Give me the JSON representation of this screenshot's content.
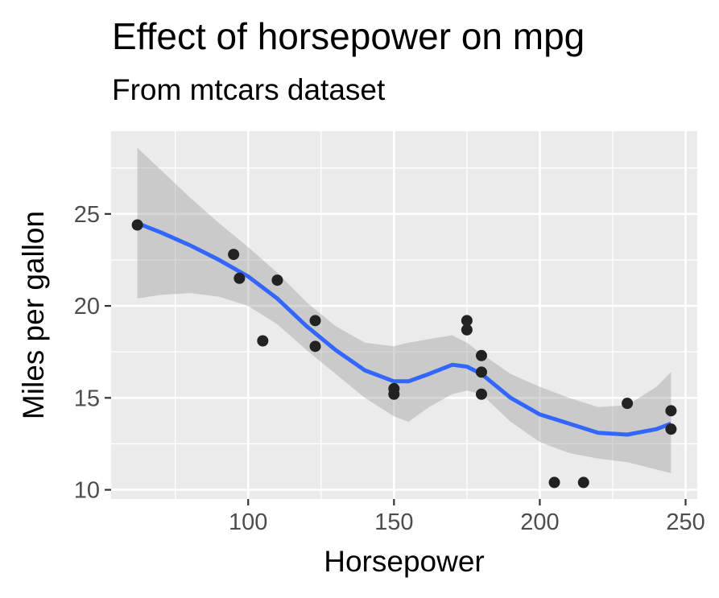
{
  "chart_data": {
    "type": "scatter",
    "title": "Effect of horsepower on mpg",
    "subtitle": "From mtcars dataset",
    "xlabel": "Horsepower",
    "ylabel": "Miles per gallon",
    "xlim": [
      53,
      254
    ],
    "ylim": [
      9.5,
      29.5
    ],
    "x_ticks": [
      100,
      150,
      200,
      250
    ],
    "y_ticks": [
      10,
      15,
      20,
      25
    ],
    "x_minor": [
      75,
      125,
      175,
      225
    ],
    "y_minor": [
      12.5,
      17.5,
      22.5,
      27.5
    ],
    "grid": true,
    "panel_color": "#ebebeb",
    "point_color": "#222222",
    "smooth_color": "#3366ff",
    "band_color": "#999999",
    "points": [
      {
        "x": 62,
        "y": 24.4
      },
      {
        "x": 95,
        "y": 22.8
      },
      {
        "x": 97,
        "y": 21.5
      },
      {
        "x": 105,
        "y": 18.1
      },
      {
        "x": 110,
        "y": 21.4
      },
      {
        "x": 123,
        "y": 19.2
      },
      {
        "x": 123,
        "y": 17.8
      },
      {
        "x": 150,
        "y": 15.5
      },
      {
        "x": 150,
        "y": 15.2
      },
      {
        "x": 175,
        "y": 19.2
      },
      {
        "x": 175,
        "y": 18.7
      },
      {
        "x": 180,
        "y": 17.3
      },
      {
        "x": 180,
        "y": 16.4
      },
      {
        "x": 180,
        "y": 15.2
      },
      {
        "x": 205,
        "y": 10.4
      },
      {
        "x": 215,
        "y": 10.4
      },
      {
        "x": 230,
        "y": 14.7
      },
      {
        "x": 245,
        "y": 14.3
      },
      {
        "x": 245,
        "y": 13.3
      }
    ],
    "smooth": [
      {
        "x": 62,
        "y": 24.5,
        "lo": 20.4,
        "hi": 28.6
      },
      {
        "x": 70,
        "y": 24.0,
        "lo": 20.6,
        "hi": 27.4
      },
      {
        "x": 80,
        "y": 23.3,
        "lo": 20.7,
        "hi": 25.9
      },
      {
        "x": 90,
        "y": 22.5,
        "lo": 20.5,
        "hi": 24.5
      },
      {
        "x": 100,
        "y": 21.6,
        "lo": 20.0,
        "hi": 23.2
      },
      {
        "x": 110,
        "y": 20.4,
        "lo": 19.0,
        "hi": 21.8
      },
      {
        "x": 120,
        "y": 18.9,
        "lo": 17.6,
        "hi": 20.2
      },
      {
        "x": 130,
        "y": 17.6,
        "lo": 16.3,
        "hi": 18.9
      },
      {
        "x": 140,
        "y": 16.5,
        "lo": 15.0,
        "hi": 18.0
      },
      {
        "x": 150,
        "y": 15.9,
        "lo": 14.0,
        "hi": 17.8
      },
      {
        "x": 155,
        "y": 15.9,
        "lo": 13.7,
        "hi": 18.0
      },
      {
        "x": 162,
        "y": 16.3,
        "lo": 14.5,
        "hi": 18.2
      },
      {
        "x": 170,
        "y": 16.8,
        "lo": 15.2,
        "hi": 18.4
      },
      {
        "x": 175,
        "y": 16.7,
        "lo": 15.4,
        "hi": 18.0
      },
      {
        "x": 180,
        "y": 16.3,
        "lo": 15.2,
        "hi": 17.4
      },
      {
        "x": 190,
        "y": 15.0,
        "lo": 13.7,
        "hi": 16.3
      },
      {
        "x": 200,
        "y": 14.1,
        "lo": 12.6,
        "hi": 15.6
      },
      {
        "x": 210,
        "y": 13.6,
        "lo": 12.0,
        "hi": 15.0
      },
      {
        "x": 220,
        "y": 13.1,
        "lo": 11.7,
        "hi": 14.5
      },
      {
        "x": 230,
        "y": 13.0,
        "lo": 11.5,
        "hi": 14.6
      },
      {
        "x": 240,
        "y": 13.3,
        "lo": 11.1,
        "hi": 15.6
      },
      {
        "x": 245,
        "y": 13.6,
        "lo": 10.9,
        "hi": 16.4
      }
    ]
  }
}
